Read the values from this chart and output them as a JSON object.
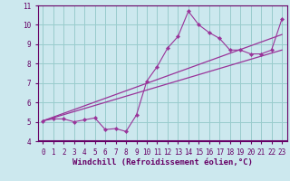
{
  "bg_color": "#cce8ee",
  "plot_bg_color": "#cce8ee",
  "line_color": "#993399",
  "grid_color": "#99cccc",
  "axis_bar_color": "#660066",
  "xlim": [
    -0.5,
    23.5
  ],
  "ylim": [
    4,
    11
  ],
  "xticks": [
    0,
    1,
    2,
    3,
    4,
    5,
    6,
    7,
    8,
    9,
    10,
    11,
    12,
    13,
    14,
    15,
    16,
    17,
    18,
    19,
    20,
    21,
    22,
    23
  ],
  "yticks": [
    4,
    5,
    6,
    7,
    8,
    9,
    10,
    11
  ],
  "data_x": [
    0,
    1,
    2,
    3,
    4,
    5,
    6,
    7,
    8,
    9,
    10,
    11,
    12,
    13,
    14,
    15,
    16,
    17,
    18,
    19,
    20,
    21,
    22,
    23
  ],
  "data_y": [
    5.05,
    5.15,
    5.15,
    5.0,
    5.1,
    5.2,
    4.6,
    4.65,
    4.5,
    5.35,
    7.1,
    7.85,
    8.8,
    9.4,
    10.7,
    10.0,
    9.6,
    9.3,
    8.7,
    8.7,
    8.5,
    8.5,
    8.7,
    10.3
  ],
  "line1_x": [
    0,
    23
  ],
  "line1_y": [
    5.05,
    8.7
  ],
  "line2_x": [
    0,
    23
  ],
  "line2_y": [
    5.05,
    9.5
  ],
  "tick_fontsize": 5.5,
  "label_fontsize": 6.5,
  "xlabel": "Windchill (Refroidissement éolien,°C)"
}
